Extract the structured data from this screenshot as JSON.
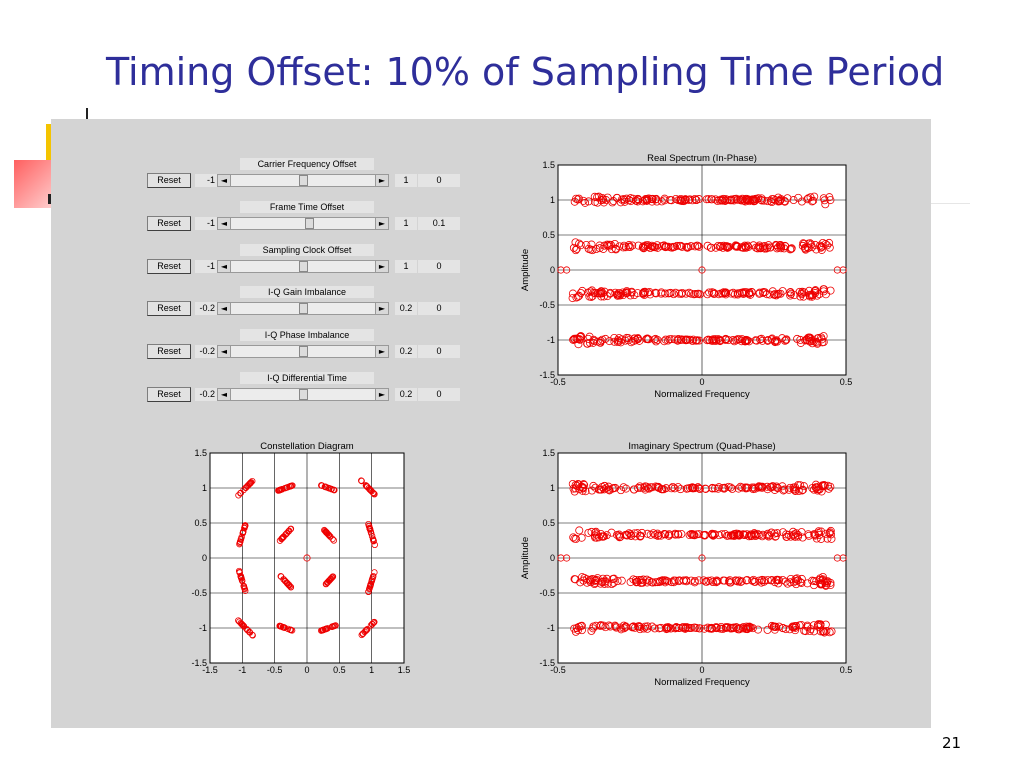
{
  "slide": {
    "title": "Timing Offset: 10% of Sampling Time Period",
    "page_number": "21"
  },
  "controls": [
    {
      "title": "Carrier Frequency Offset",
      "reset_label": "Reset",
      "min": "-1",
      "max": "1",
      "value": "0",
      "position": 0.5
    },
    {
      "title": "Frame Time Offset",
      "reset_label": "Reset",
      "min": "-1",
      "max": "1",
      "value": "0.1",
      "position": 0.55
    },
    {
      "title": "Sampling Clock Offset",
      "reset_label": "Reset",
      "min": "-1",
      "max": "1",
      "value": "0",
      "position": 0.5
    },
    {
      "title": "I-Q Gain Imbalance",
      "reset_label": "Reset",
      "min": "-0.2",
      "max": "0.2",
      "value": "0",
      "position": 0.5
    },
    {
      "title": "I-Q Phase Imbalance",
      "reset_label": "Reset",
      "min": "-0.2",
      "max": "0.2",
      "value": "0",
      "position": 0.5
    },
    {
      "title": "I-Q Differential Time",
      "reset_label": "Reset",
      "min": "-0.2",
      "max": "0.2",
      "value": "0",
      "position": 0.5
    }
  ],
  "colors": {
    "marker": "#ee0000",
    "title": "#2e2e9a",
    "panel": "#d4d4d4"
  },
  "chart_data": [
    {
      "id": "real",
      "type": "scatter",
      "title": "Real Spectrum (In-Phase)",
      "xlabel": "Normalized Frequency",
      "ylabel": "Amplitude",
      "xlim": [
        -0.5,
        0.5
      ],
      "ylim": [
        -1.5,
        1.5
      ],
      "xticks": [
        "-0.5",
        "0",
        "0.5"
      ],
      "yticks": [
        "1.5",
        "1",
        "0.5",
        "0",
        "-0.5",
        "-1",
        "-1.5"
      ],
      "grid": true,
      "marker": "circle-open",
      "bands": [
        1,
        0.333,
        -0.333,
        -1
      ],
      "x_range": [
        -0.45,
        0.45
      ],
      "spread_center": 0.015,
      "spread_edge": 0.07,
      "points_per_band": 160,
      "isolated_points": [
        [
          -0.49,
          0
        ],
        [
          -0.47,
          0
        ],
        [
          0,
          0
        ],
        [
          0.49,
          0
        ],
        [
          0.47,
          0
        ]
      ]
    },
    {
      "id": "constellation",
      "type": "scatter",
      "title": "Constellation Diagram",
      "xlabel": "",
      "ylabel": "",
      "xlim": [
        -1.5,
        1.5
      ],
      "ylim": [
        -1.5,
        1.5
      ],
      "xticks": [
        "-1.5",
        "-1",
        "-0.5",
        "0",
        "0.5",
        "1",
        "1.5"
      ],
      "yticks": [
        "1.5",
        "1",
        "0.5",
        "0",
        "-0.5",
        "-1",
        "-1.5"
      ],
      "grid": true,
      "marker": "circle-open",
      "clusters": [
        [
          -0.95,
          1.0
        ],
        [
          -0.333,
          1.0
        ],
        [
          0.333,
          1.0
        ],
        [
          0.95,
          1.0
        ],
        [
          -1.0,
          0.333
        ],
        [
          -0.333,
          0.333
        ],
        [
          0.333,
          0.333
        ],
        [
          1.0,
          0.333
        ],
        [
          -1.0,
          -0.333
        ],
        [
          -0.333,
          -0.333
        ],
        [
          0.333,
          -0.333
        ],
        [
          1.0,
          -0.333
        ],
        [
          -0.95,
          -1.0
        ],
        [
          -0.333,
          -1.0
        ],
        [
          0.333,
          -1.0
        ],
        [
          0.95,
          -1.0
        ]
      ],
      "isolated_points": [
        [
          0,
          0
        ]
      ]
    },
    {
      "id": "imag",
      "type": "scatter",
      "title": "Imaginary Spectrum (Quad-Phase)",
      "xlabel": "Normalized Frequency",
      "ylabel": "Amplitude",
      "xlim": [
        -0.5,
        0.5
      ],
      "ylim": [
        -1.5,
        1.5
      ],
      "xticks": [
        "-0.5",
        "0",
        "0.5"
      ],
      "yticks": [
        "1.5",
        "1",
        "0.5",
        "0",
        "-0.5",
        "-1",
        "-1.5"
      ],
      "grid": true,
      "marker": "circle-open",
      "bands": [
        1,
        0.333,
        -0.333,
        -1
      ],
      "x_range": [
        -0.45,
        0.45
      ],
      "spread_center": 0.015,
      "spread_edge": 0.07,
      "points_per_band": 160,
      "isolated_points": [
        [
          -0.49,
          0
        ],
        [
          -0.47,
          0
        ],
        [
          0,
          0
        ],
        [
          0.49,
          0
        ],
        [
          0.47,
          0
        ]
      ]
    }
  ]
}
